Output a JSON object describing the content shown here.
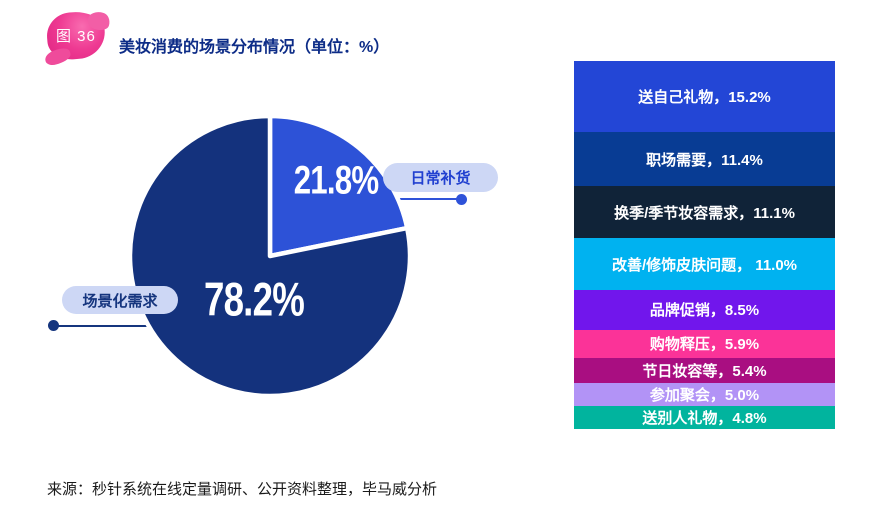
{
  "header": {
    "badge_label": "图 36",
    "title": "美妆消费的场景分布情况（单位：%）"
  },
  "source": "来源：秒针系统在线定量调研、公开资料整理，毕马威分析",
  "colors": {
    "title_text": "#0d2c87",
    "pie_daily_blue": "#2d52d7",
    "pie_scene_navy": "#14327d",
    "pill_background": "#cdd7f5",
    "pill_text_right": "#2140d0",
    "pill_text_left": "#15357e",
    "badge_pink": "#ee3a92",
    "background": "#ffffff"
  },
  "chart_data": [
    {
      "type": "pie",
      "title": "美妆消费的场景分布情况",
      "unit": "%",
      "start_angle_deg": -90,
      "direction": "clockwise",
      "slices": [
        {
          "label": "日常补货",
          "value": 21.8,
          "value_label": "21.8%",
          "color": "#2d52d7"
        },
        {
          "label": "场景化需求",
          "value": 78.2,
          "value_label": "78.2%",
          "color": "#14327d"
        }
      ]
    },
    {
      "type": "bar",
      "subtype": "stacked-column",
      "categories": [
        "送自己礼物",
        "职场需要",
        "换季/季节妆容需求",
        "改善/修饰皮肤问题",
        "品牌促销",
        "购物释压",
        "节日妆容等",
        "参加聚会",
        "送别人礼物"
      ],
      "values": [
        15.2,
        11.4,
        11.1,
        11.0,
        8.5,
        5.9,
        5.4,
        5.0,
        4.8
      ],
      "items": [
        {
          "display": "送自己礼物，15.2%",
          "color": "#2346d6"
        },
        {
          "display": "职场需要，11.4%",
          "color": "#083c94"
        },
        {
          "display": "换季/季节妆容需求，11.1%",
          "color": "#102338"
        },
        {
          "display": "改善/修饰皮肤问题， 11.0%",
          "color": "#00b2f0"
        },
        {
          "display": "品牌促销，8.5%",
          "color": "#7116ec"
        },
        {
          "display": "购物释压，5.9%",
          "color": "#fb3398"
        },
        {
          "display": "节日妆容等，5.4%",
          "color": "#a90e81"
        },
        {
          "display": "参加聚会，5.0%",
          "color": "#b293f6"
        },
        {
          "display": "送别人礼物，4.8%",
          "color": "#01b49e"
        }
      ]
    }
  ]
}
